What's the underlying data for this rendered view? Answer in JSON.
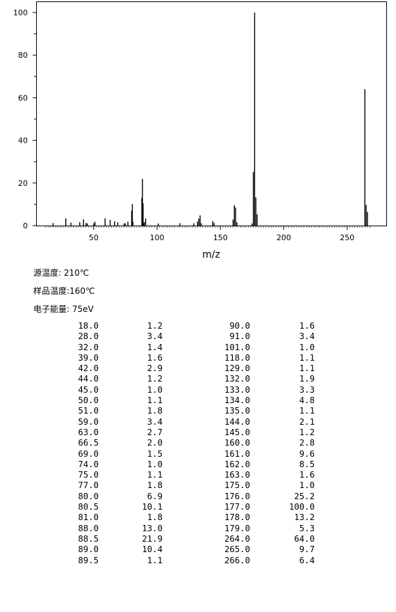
{
  "chart_data": {
    "type": "bar",
    "xlabel": "m/z",
    "ylabel": "",
    "xlim": [
      10,
      270
    ],
    "ylim": [
      0,
      100
    ],
    "xticks": [
      50,
      100,
      150,
      200,
      250
    ],
    "yticks": [
      0,
      20,
      40,
      60,
      80,
      100
    ],
    "peaks": [
      [
        18.0,
        1.2
      ],
      [
        28.0,
        3.4
      ],
      [
        32.0,
        1.4
      ],
      [
        39.0,
        1.6
      ],
      [
        42.0,
        2.9
      ],
      [
        44.0,
        1.2
      ],
      [
        45.0,
        1.0
      ],
      [
        50.0,
        1.1
      ],
      [
        51.0,
        1.8
      ],
      [
        59.0,
        3.4
      ],
      [
        63.0,
        2.7
      ],
      [
        66.5,
        2.0
      ],
      [
        69.0,
        1.5
      ],
      [
        74.0,
        1.0
      ],
      [
        75.0,
        1.1
      ],
      [
        77.0,
        1.8
      ],
      [
        80.0,
        6.9
      ],
      [
        80.5,
        10.1
      ],
      [
        81.0,
        1.8
      ],
      [
        88.0,
        13.0
      ],
      [
        88.5,
        21.9
      ],
      [
        89.0,
        10.4
      ],
      [
        89.5,
        1.1
      ],
      [
        90.0,
        1.6
      ],
      [
        91.0,
        3.4
      ],
      [
        101.0,
        1.0
      ],
      [
        118.0,
        1.1
      ],
      [
        129.0,
        1.1
      ],
      [
        132.0,
        1.9
      ],
      [
        133.0,
        3.3
      ],
      [
        134.0,
        4.8
      ],
      [
        135.0,
        1.1
      ],
      [
        144.0,
        2.1
      ],
      [
        145.0,
        1.2
      ],
      [
        160.0,
        2.8
      ],
      [
        161.0,
        9.6
      ],
      [
        162.0,
        8.5
      ],
      [
        163.0,
        1.6
      ],
      [
        175.0,
        1.0
      ],
      [
        176.0,
        25.2
      ],
      [
        177.0,
        100.0
      ],
      [
        178.0,
        13.2
      ],
      [
        179.0,
        5.3
      ],
      [
        264.0,
        64.0
      ],
      [
        265.0,
        9.7
      ],
      [
        266.0,
        6.4
      ]
    ]
  },
  "conditions": {
    "source_temp": "源温度: 210℃",
    "sample_temp": "样品温度:160℃",
    "electron_energy": "电子能量: 75eV"
  },
  "peak_table": [
    [
      "18.0",
      "1.2",
      "90.0",
      "1.6"
    ],
    [
      "28.0",
      "3.4",
      "91.0",
      "3.4"
    ],
    [
      "32.0",
      "1.4",
      "101.0",
      "1.0"
    ],
    [
      "39.0",
      "1.6",
      "118.0",
      "1.1"
    ],
    [
      "42.0",
      "2.9",
      "129.0",
      "1.1"
    ],
    [
      "44.0",
      "1.2",
      "132.0",
      "1.9"
    ],
    [
      "45.0",
      "1.0",
      "133.0",
      "3.3"
    ],
    [
      "50.0",
      "1.1",
      "134.0",
      "4.8"
    ],
    [
      "51.0",
      "1.8",
      "135.0",
      "1.1"
    ],
    [
      "59.0",
      "3.4",
      "144.0",
      "2.1"
    ],
    [
      "63.0",
      "2.7",
      "145.0",
      "1.2"
    ],
    [
      "66.5",
      "2.0",
      "160.0",
      "2.8"
    ],
    [
      "69.0",
      "1.5",
      "161.0",
      "9.6"
    ],
    [
      "74.0",
      "1.0",
      "162.0",
      "8.5"
    ],
    [
      "75.0",
      "1.1",
      "163.0",
      "1.6"
    ],
    [
      "77.0",
      "1.8",
      "175.0",
      "1.0"
    ],
    [
      "80.0",
      "6.9",
      "176.0",
      "25.2"
    ],
    [
      "80.5",
      "10.1",
      "177.0",
      "100.0"
    ],
    [
      "81.0",
      "1.8",
      "178.0",
      "13.2"
    ],
    [
      "88.0",
      "13.0",
      "179.0",
      "5.3"
    ],
    [
      "88.5",
      "21.9",
      "264.0",
      "64.0"
    ],
    [
      "89.0",
      "10.4",
      "265.0",
      "9.7"
    ],
    [
      "89.5",
      "1.1",
      "266.0",
      "6.4"
    ]
  ]
}
